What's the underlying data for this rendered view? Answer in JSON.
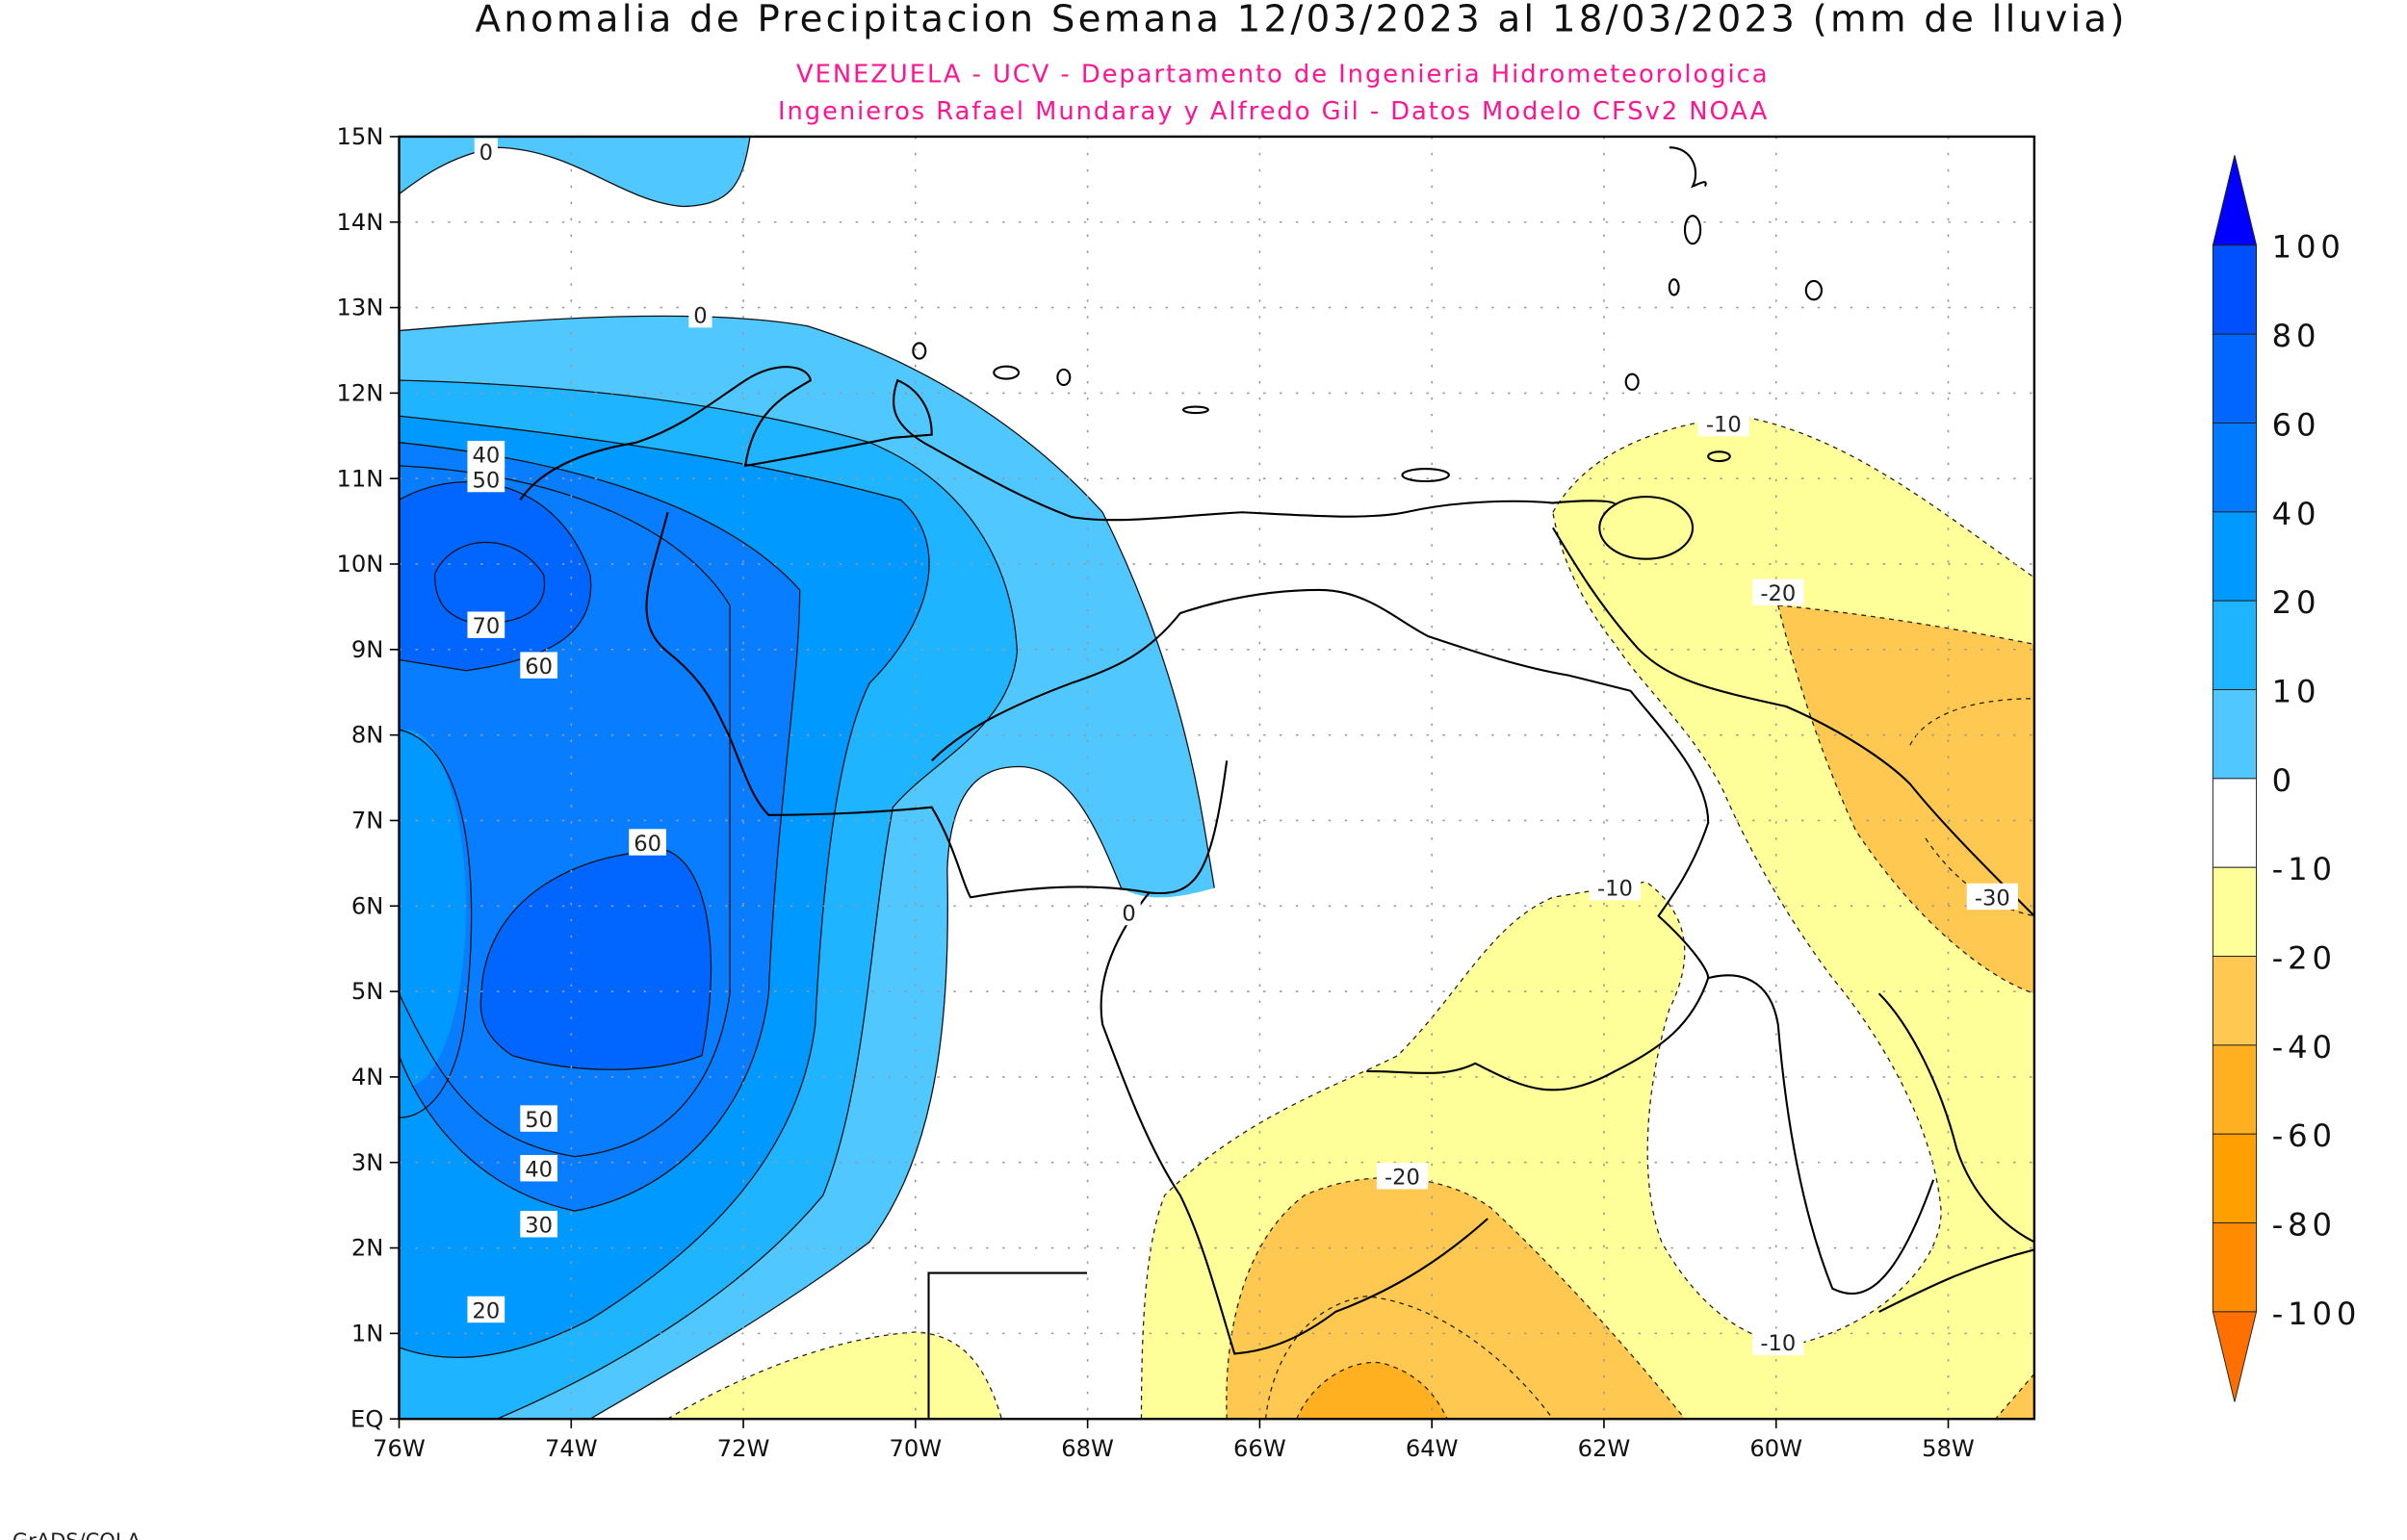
{
  "header": {
    "title": "Anomalia de Precipitacion Semana 12/03/2023 al 18/03/2023 (mm de lluvia)",
    "subtitle_1": "VENEZUELA - UCV - Departamento de Ingenieria Hidrometeorologica",
    "subtitle_2": "Ingenieros Rafael Mundaray y Alfredo Gil - Datos Modelo CFSv2 NOAA"
  },
  "map": {
    "lon_labels": [
      "76W",
      "74W",
      "72W",
      "70W",
      "68W",
      "66W",
      "64W",
      "62W",
      "60W",
      "58W"
    ],
    "lat_labels": [
      "EQ",
      "1N",
      "2N",
      "3N",
      "4N",
      "5N",
      "6N",
      "7N",
      "8N",
      "9N",
      "10N",
      "11N",
      "12N",
      "13N",
      "14N",
      "15N"
    ],
    "contour_labels": [
      "0",
      "0",
      "0",
      "40",
      "50",
      "70",
      "60",
      "60",
      "50",
      "40",
      "30",
      "20",
      "-10",
      "-10",
      "-10",
      "-20",
      "-20",
      "-30"
    ]
  },
  "colorbar": {
    "labels": [
      "100",
      "80",
      "60",
      "40",
      "20",
      "10",
      "0",
      "-10",
      "-20",
      "-40",
      "-60",
      "-80",
      "-100"
    ],
    "colors": [
      "#0050ff",
      "#0066ff",
      "#007bff",
      "#0099ff",
      "#1eb4ff",
      "#50c8ff",
      "#ffffff",
      "#ffff99",
      "#ffc850",
      "#ffb020",
      "#ffa000",
      "#ff8c00"
    ],
    "over_color": "#0000ff",
    "under_color": "#ff7000"
  },
  "footer": {
    "credit": "GrADS/COLA"
  }
}
